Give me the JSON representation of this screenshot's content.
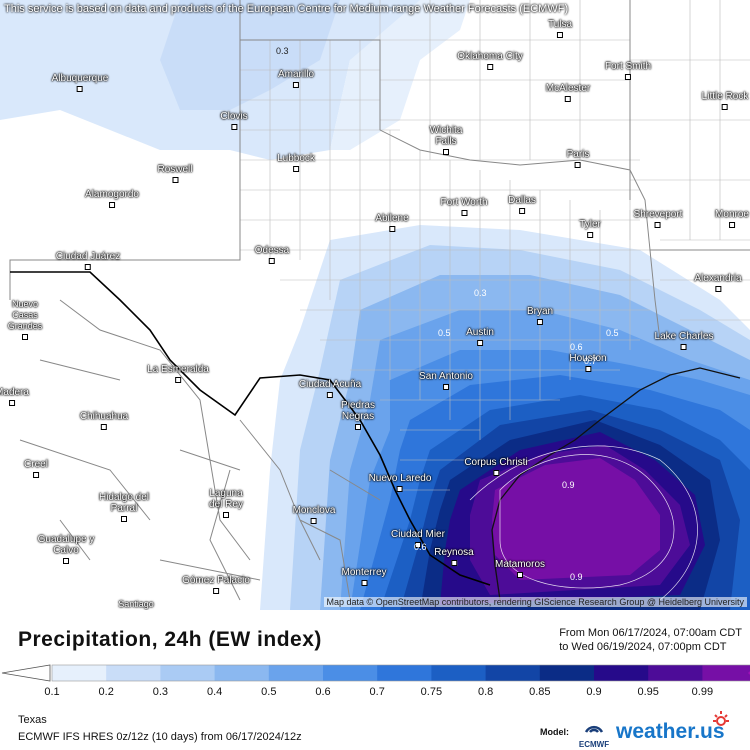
{
  "disclaimer": "This service is based on data and products of the European Centre for Medium-range Weather Forecasts (ECMWF)",
  "attribution": "Map data © OpenStreetMap contributors, rendering GIScience Research Group @ Heidelberg University",
  "title": "Precipitation, 24h (EW index)",
  "valid_from": "From Mon 06/17/2024, 07:00am CDT",
  "valid_to": "to Wed 06/19/2024, 07:00pm CDT",
  "region": "Texas",
  "model_run": "ECMWF IFS HRES 0z/12z (10 days)  from  06/17/2024/12z",
  "model_label": "Model:",
  "ecmwf_logo_text": "ECMWF",
  "brand": "weather.us",
  "cities": {
    "tulsa": "Tulsa",
    "oklahoma_city": "Oklahoma City",
    "fort_smith": "Fort Smith",
    "mcalester": "McAlester",
    "little_rock": "Little Rock",
    "albuquerque": "Albuquerque",
    "amarillo": "Amarillo",
    "clovis": "Clovis",
    "wichita_falls": "Wichita Falls",
    "paris": "Paris",
    "lubbock": "Lubbock",
    "roswell": "Roswell",
    "alamogordo": "Alamogordo",
    "fort_worth": "Fort Worth",
    "dallas": "Dallas",
    "shreveport": "Shreveport",
    "monroe": "Monroe",
    "abilene": "Abilene",
    "tyler": "Tyler",
    "ciudad_juarez": "Ciudad Juárez",
    "odessa": "Odessa",
    "alexandria": "Alexandria",
    "nuevo_casas_grandes": "Nuevo Casas Grandes",
    "bryan": "Bryan",
    "austin": "Austin",
    "lake_charles": "Lake Charles",
    "houston": "Houston",
    "la_esmeralda": "La Esmeralda",
    "san_antonio": "San Antonio",
    "ciudad_acuna": "Ciudad Acuña",
    "madera": "Madera",
    "piedras_negras": "Piedras Negras",
    "chihuahua": "Chihuahua",
    "corpus_christi": "Corpus Christi",
    "creel": "Creel",
    "nuevo_laredo": "Nuevo Laredo",
    "hidalgo_del_parral": "Hidalgo del Parral",
    "laguna_del_rey": "Laguna del Rey",
    "monclova": "Monclova",
    "ciudad_mier": "Ciudad Mier",
    "guadalupe_y_calvo": "Guadalupe y Calvo",
    "reynosa": "Reynosa",
    "matamoros": "Matamoros",
    "monterrey": "Monterrey",
    "gomez_palacio": "Gómez Palacio",
    "santiago": "Santiago"
  },
  "contour_labels": [
    "0.3",
    "0.3",
    "0.5",
    "0.5",
    "0.6",
    "0.6",
    "0.7",
    "0.9",
    "0.9"
  ],
  "legend": {
    "labels": [
      "0.1",
      "0.2",
      "0.3",
      "0.4",
      "0.5",
      "0.6",
      "0.7",
      "0.75",
      "0.8",
      "0.85",
      "0.9",
      "0.95",
      "0.99"
    ],
    "colors": [
      "#e6f0fc",
      "#c9ddf8",
      "#aacbf4",
      "#8bb8f0",
      "#6aa3ec",
      "#4b8ee6",
      "#2f76db",
      "#1c5fc4",
      "#1245a6",
      "#0b2c86",
      "#260a8a",
      "#4d0c98",
      "#760fa6",
      "#a012b6"
    ]
  }
}
